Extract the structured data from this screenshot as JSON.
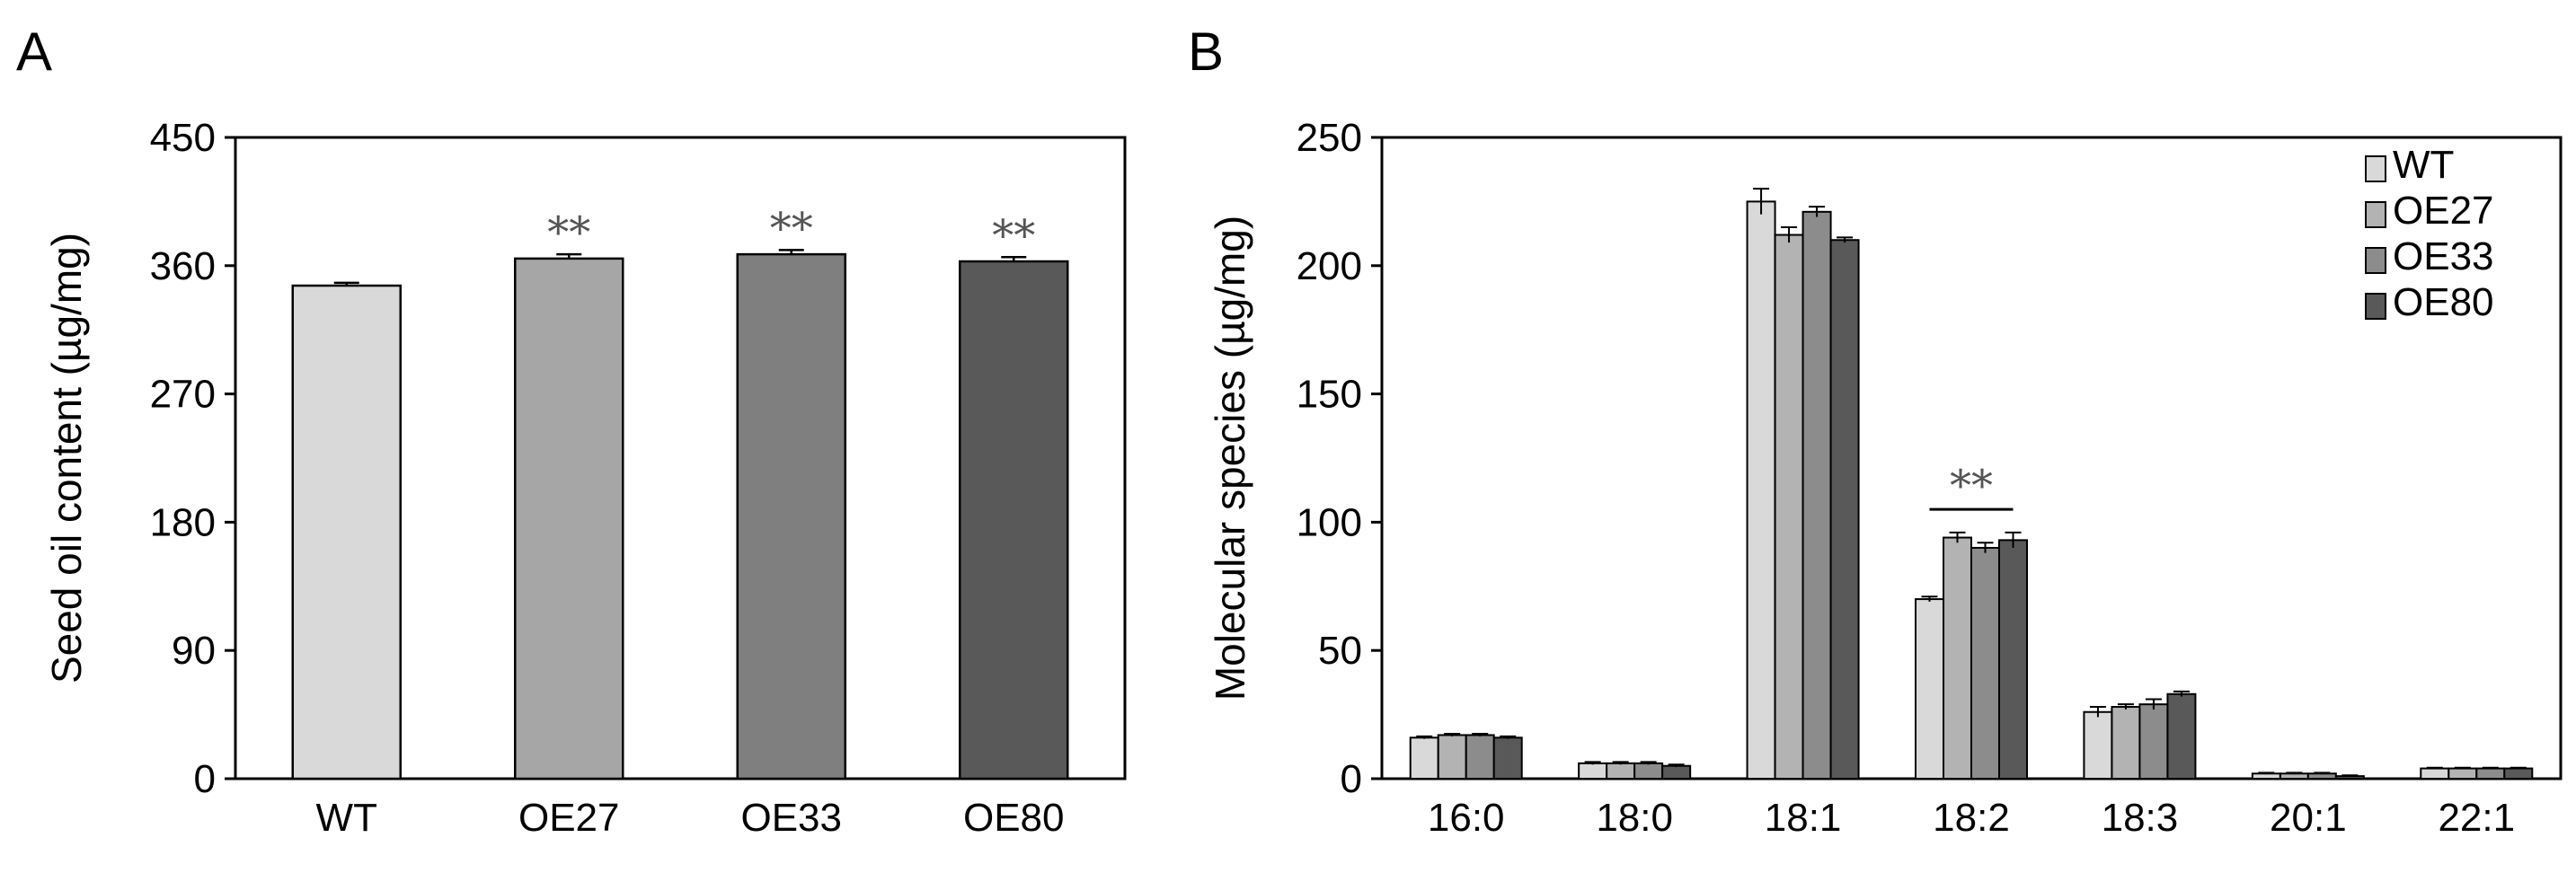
{
  "chart_data": [
    {
      "panel": "A",
      "type": "bar",
      "ylabel": "Seed oil content (µg/mg)",
      "xlabel": "",
      "ylim": [
        0,
        450
      ],
      "yticks": [
        0,
        90,
        180,
        270,
        360,
        450
      ],
      "categories": [
        "WT",
        "OE27",
        "OE33",
        "OE80"
      ],
      "values": [
        346,
        365,
        368,
        363
      ],
      "errors": [
        2,
        3,
        3,
        3
      ],
      "significance": [
        "",
        "**",
        "**",
        "**"
      ],
      "colors": [
        "#d9d9d9",
        "#a6a6a6",
        "#7f7f7f",
        "#595959"
      ]
    },
    {
      "panel": "B",
      "type": "bar",
      "ylabel": "Molecular species (µg/mg)",
      "xlabel": "",
      "ylim": [
        0,
        250
      ],
      "yticks": [
        0,
        50,
        100,
        150,
        200,
        250
      ],
      "categories": [
        "16:0",
        "18:0",
        "18:1",
        "18:2",
        "18:3",
        "20:1",
        "22:1"
      ],
      "series": [
        {
          "name": "WT",
          "color": "#d9d9d9",
          "values": [
            16,
            6,
            225,
            70,
            26,
            2,
            4
          ],
          "errors": [
            0.5,
            0.5,
            5,
            1,
            2,
            0.3,
            0.3
          ]
        },
        {
          "name": "OE27",
          "color": "#b3b3b3",
          "values": [
            17,
            6,
            212,
            94,
            28,
            2,
            4
          ],
          "errors": [
            0.5,
            0.5,
            3,
            2,
            1,
            0.3,
            0.3
          ]
        },
        {
          "name": "OE33",
          "color": "#8c8c8c",
          "values": [
            17,
            6,
            221,
            90,
            29,
            2,
            4
          ],
          "errors": [
            0.5,
            0.5,
            2,
            2,
            2,
            0.3,
            0.3
          ]
        },
        {
          "name": "OE80",
          "color": "#595959",
          "values": [
            16,
            5,
            210,
            93,
            33,
            1,
            4
          ],
          "errors": [
            0.5,
            0.5,
            1,
            3,
            1,
            0.3,
            0.3
          ]
        }
      ],
      "annotations": [
        {
          "category": "18:2",
          "text": "**"
        }
      ],
      "legend": "top-right"
    }
  ]
}
